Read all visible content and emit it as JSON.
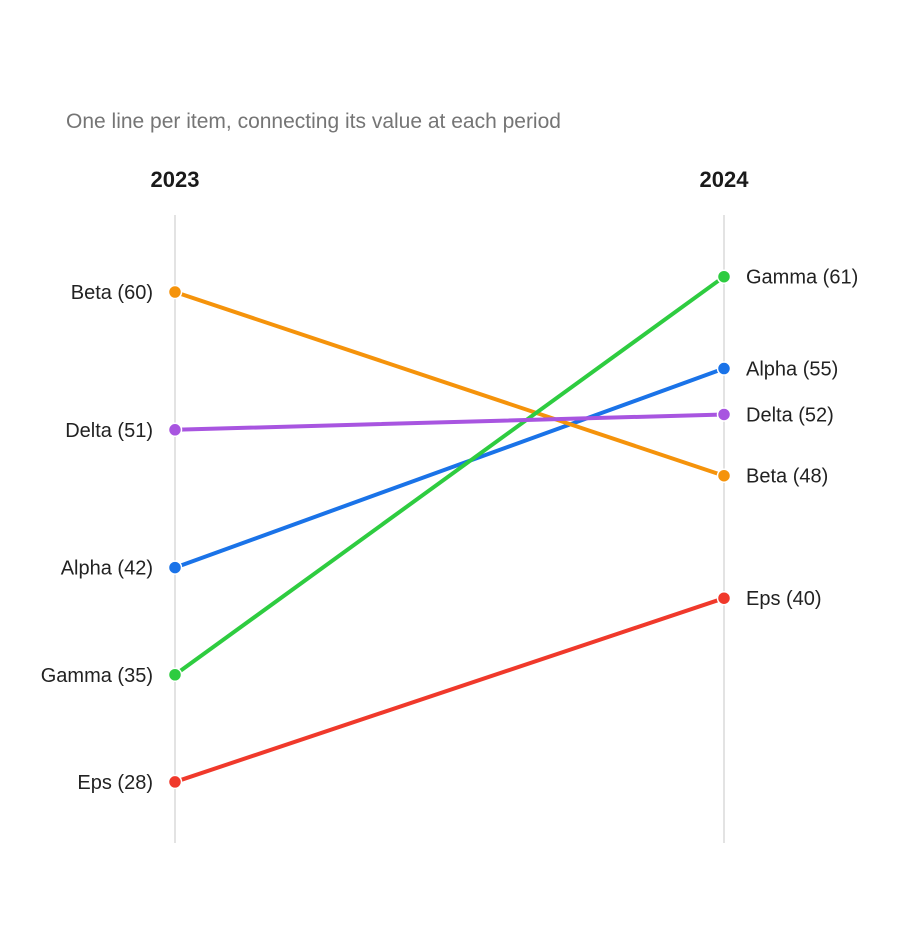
{
  "chart_data": {
    "type": "line",
    "subtitle": "One line per item, connecting its value at each period",
    "periods": [
      "2023",
      "2024"
    ],
    "ylim": [
      25,
      65
    ],
    "series": [
      {
        "name": "Alpha",
        "values": [
          42,
          55
        ],
        "color": "#1a73e8"
      },
      {
        "name": "Beta",
        "values": [
          60,
          48
        ],
        "color": "#f5930b"
      },
      {
        "name": "Gamma",
        "values": [
          35,
          61
        ],
        "color": "#2ecc40"
      },
      {
        "name": "Delta",
        "values": [
          51,
          52
        ],
        "color": "#a855e0"
      },
      {
        "name": "Eps",
        "values": [
          28,
          40
        ],
        "color": "#f0392b"
      }
    ]
  }
}
